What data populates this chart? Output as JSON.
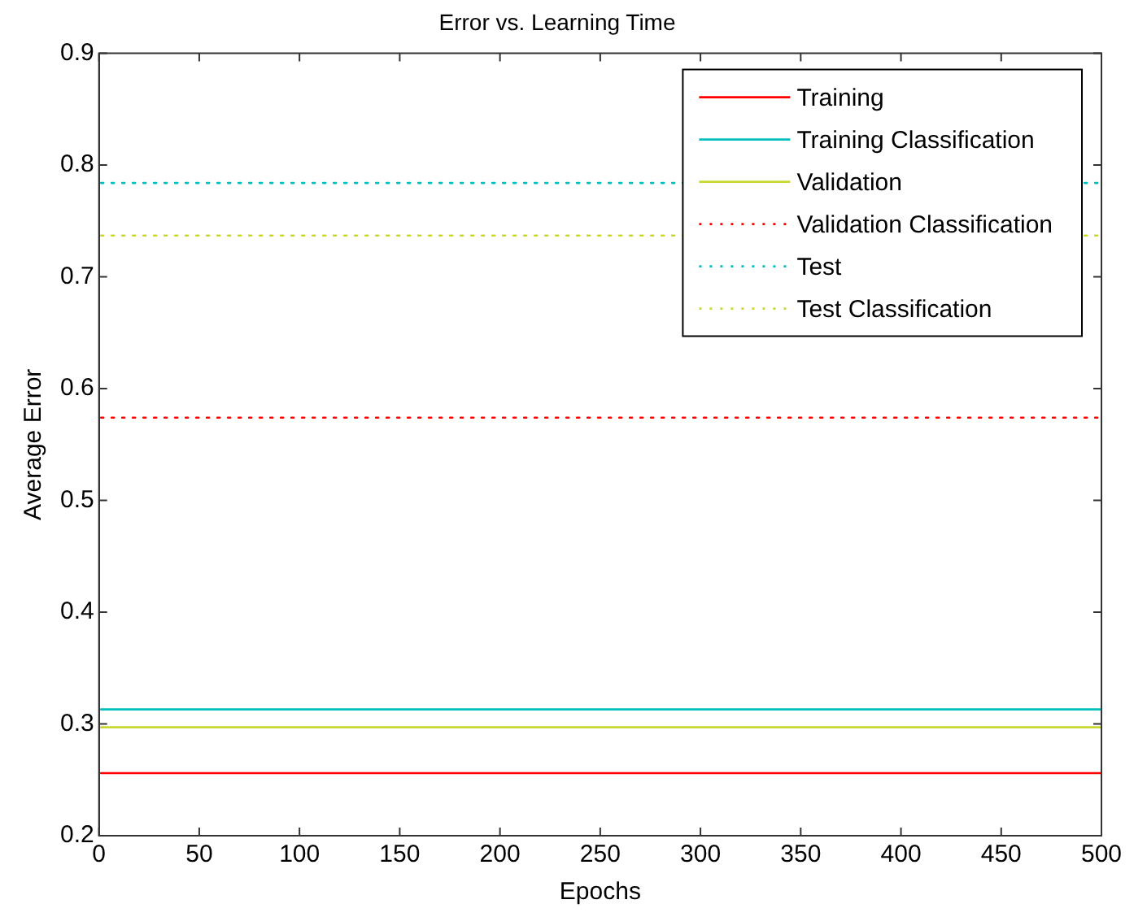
{
  "chart_data": {
    "type": "line",
    "title": "Error vs. Learning Time",
    "xlabel": "Epochs",
    "ylabel": "Average Error",
    "x": [
      1,
      500
    ],
    "xlim": [
      0,
      500
    ],
    "xticks": [
      0,
      50,
      100,
      150,
      200,
      250,
      300,
      350,
      400,
      450,
      500
    ],
    "ylim": [
      0.2,
      0.9
    ],
    "yticks": [
      0.2,
      0.3,
      0.4,
      0.5,
      0.6,
      0.7,
      0.8,
      0.9
    ],
    "grid": false,
    "legend": "top right",
    "marker": "none",
    "series": [
      {
        "name": "Training",
        "color": "#ff0000",
        "values": [
          0.256,
          0.256
        ],
        "line_style": "solid"
      },
      {
        "name": "Training Classification",
        "color": "#00bfbf",
        "values": [
          0.313,
          0.313
        ],
        "line_style": "solid"
      },
      {
        "name": "Validation",
        "color": "#c8d830",
        "values": [
          0.297,
          0.297
        ],
        "line_style": "solid"
      },
      {
        "name": "Validation Classification",
        "color": "#ff0000",
        "values": [
          0.574,
          0.574
        ],
        "line_style": "dotted"
      },
      {
        "name": "Test",
        "color": "#00bfbf",
        "values": [
          0.784,
          0.784
        ],
        "line_style": "dotted"
      },
      {
        "name": "Test Classification",
        "color": "#c8d830",
        "values": [
          0.737,
          0.737
        ],
        "line_style": "dotted"
      }
    ]
  }
}
